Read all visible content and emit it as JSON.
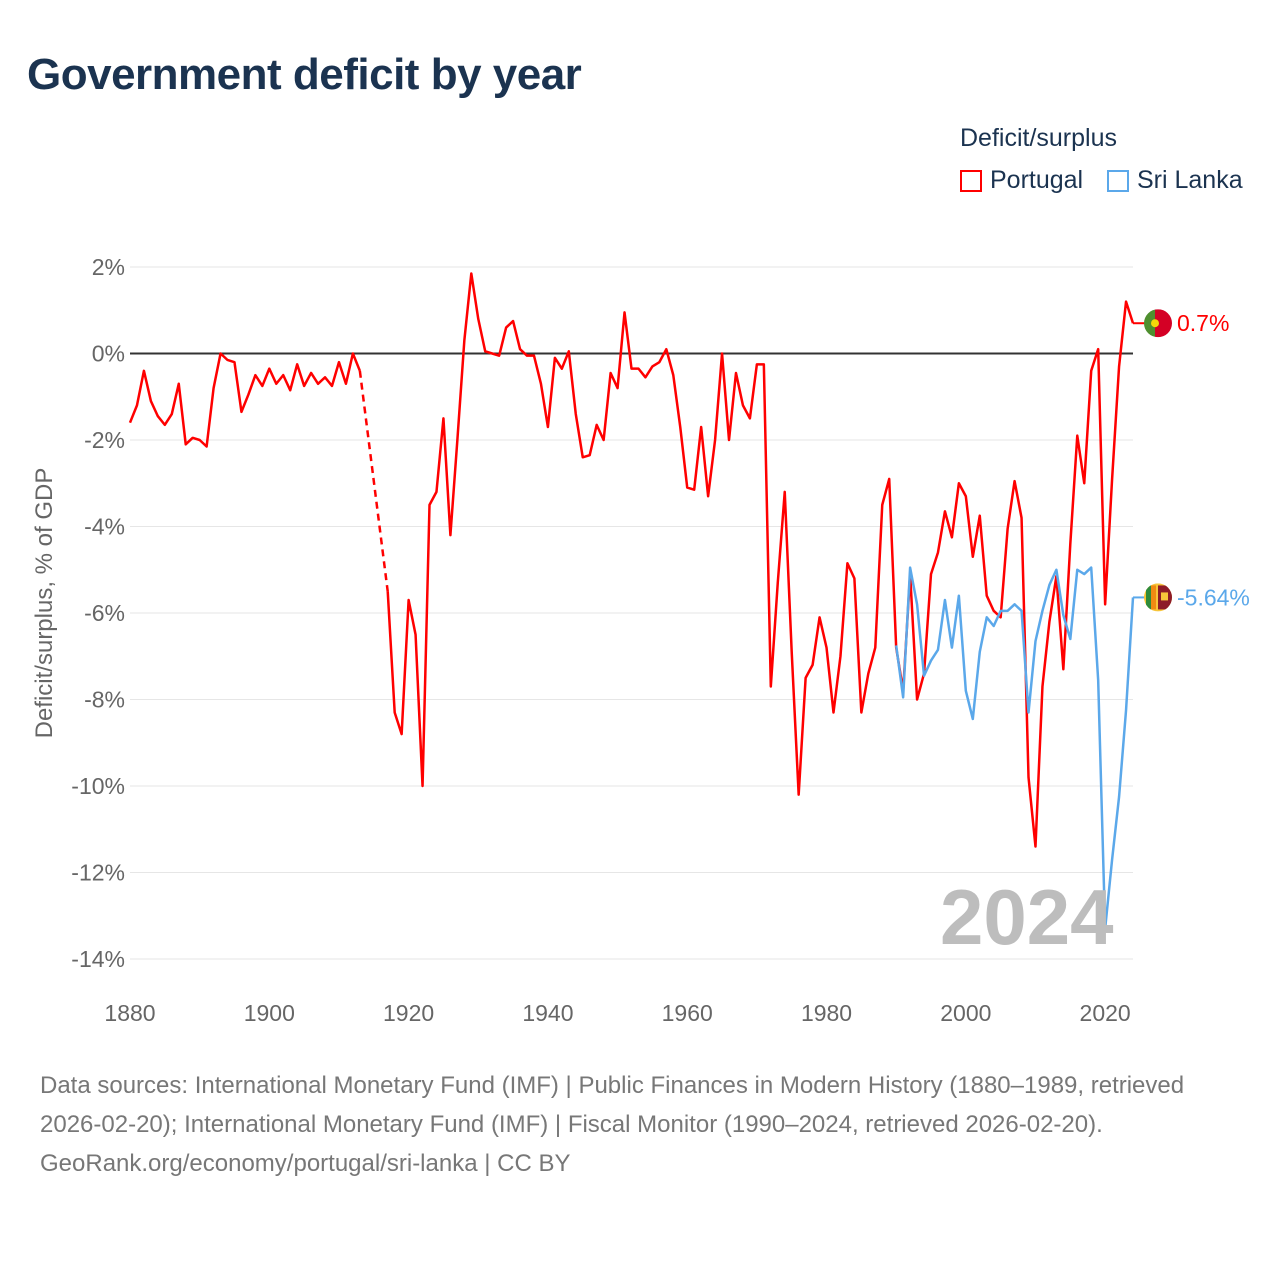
{
  "title": "Government deficit by year",
  "legend": {
    "title": "Deficit/surplus",
    "items": [
      {
        "name": "Portugal",
        "color": "#ff0000"
      },
      {
        "name": "Sri Lanka",
        "color": "#5ba8ea"
      }
    ]
  },
  "year_watermark": "2024",
  "end_labels": {
    "portugal": "0.7%",
    "sri_lanka": "-5.64%"
  },
  "footer": {
    "sources": "Data sources: International Monetary Fund (IMF) | Public Finances in Modern History (1880–1989, retrieved 2026-02-20); International Monetary Fund (IMF) | Fiscal Monitor (1990–2024, retrieved 2026-02-20).",
    "credit": "GeoRank.org/economy/portugal/sri-lanka | CC BY"
  },
  "chart_data": {
    "type": "line",
    "title": "Government deficit by year",
    "xlabel": "",
    "ylabel": "Deficit/surplus, % of GDP",
    "xlim": [
      1880,
      2024
    ],
    "ylim": [
      -14,
      2
    ],
    "x_ticks": [
      1880,
      1900,
      1920,
      1940,
      1960,
      1980,
      2000,
      2020
    ],
    "x_tick_labels": [
      "1880",
      "1900",
      "1920",
      "1940",
      "1960",
      "1980",
      "2000",
      "2020"
    ],
    "y_ticks": [
      2,
      0,
      -2,
      -4,
      -6,
      -8,
      -10,
      -12,
      -14
    ],
    "y_tick_labels": [
      "2%",
      "0%",
      "-2%",
      "-4%",
      "-6%",
      "-8%",
      "-10%",
      "-12%",
      "-14%"
    ],
    "grid": true,
    "legend_position": "top-right",
    "series": [
      {
        "name": "Portugal",
        "color": "#ff0000",
        "start_year": 1880,
        "gap_years": [
          1914,
          1915,
          1916
        ],
        "values": [
          -1.6,
          -1.2,
          -0.4,
          -1.1,
          -1.45,
          -1.65,
          -1.4,
          -0.7,
          -2.1,
          -1.95,
          -2.0,
          -2.15,
          -0.8,
          0,
          -0.15,
          -0.2,
          -1.35,
          -0.95,
          -0.5,
          -0.75,
          -0.35,
          -0.7,
          -0.5,
          -0.85,
          -0.25,
          -0.75,
          -0.45,
          -0.7,
          -0.55,
          -0.75,
          -0.2,
          -0.7,
          0,
          -0.4,
          null,
          null,
          null,
          -5.5,
          -8.3,
          -8.8,
          -5.7,
          -6.5,
          -10.0,
          -3.5,
          -3.2,
          -1.5,
          -4.2,
          -2.0,
          0.3,
          1.85,
          0.8,
          0.05,
          0,
          -0.05,
          0.6,
          0.75,
          0.1,
          -0.05,
          -0.05,
          -0.7,
          -1.7,
          -0.1,
          -0.35,
          0.05,
          -1.4,
          -2.4,
          -2.35,
          -1.65,
          -2.0,
          -0.45,
          -0.8,
          0.95,
          -0.35,
          -0.35,
          -0.55,
          -0.3,
          -0.2,
          0.1,
          -0.5,
          -1.7,
          -3.1,
          -3.15,
          -1.7,
          -3.3,
          -2.0,
          0,
          -2.0,
          -0.45,
          -1.2,
          -1.5,
          -0.25,
          -0.25,
          -7.7,
          -5.3,
          -3.2,
          -6.9,
          -10.2,
          -7.5,
          -7.2,
          -6.1,
          -6.8,
          -8.3,
          -7.0,
          -4.85,
          -5.2,
          -8.3,
          -7.4,
          -6.8,
          -3.5,
          -2.9,
          -6.8,
          -7.8,
          -5.1,
          -8.0,
          -7.4,
          -5.1,
          -4.6,
          -3.65,
          -4.25,
          -3.0,
          -3.3,
          -4.7,
          -3.75,
          -5.6,
          -5.95,
          -6.1,
          -4.05,
          -2.95,
          -3.8,
          -9.8,
          -11.4,
          -7.7,
          -6.2,
          -5.15,
          -7.3,
          -4.4,
          -1.9,
          -3.0,
          -0.4,
          0.1,
          -5.8,
          -2.9,
          -0.3,
          1.2,
          0.7
        ]
      },
      {
        "name": "Sri Lanka",
        "color": "#5ba8ea",
        "start_year": 1990,
        "values": [
          -6.75,
          -7.95,
          -4.95,
          -5.8,
          -7.45,
          -7.1,
          -6.85,
          -5.7,
          -6.8,
          -5.6,
          -7.8,
          -8.45,
          -6.9,
          -6.1,
          -6.3,
          -5.95,
          -5.95,
          -5.8,
          -5.95,
          -8.3,
          -6.65,
          -5.95,
          -5.35,
          -5.0,
          -6.05,
          -6.6,
          -5.0,
          -5.1,
          -4.95,
          -7.55,
          -13.3,
          -11.7,
          -10.25,
          -8.25,
          -5.64
        ]
      }
    ]
  }
}
